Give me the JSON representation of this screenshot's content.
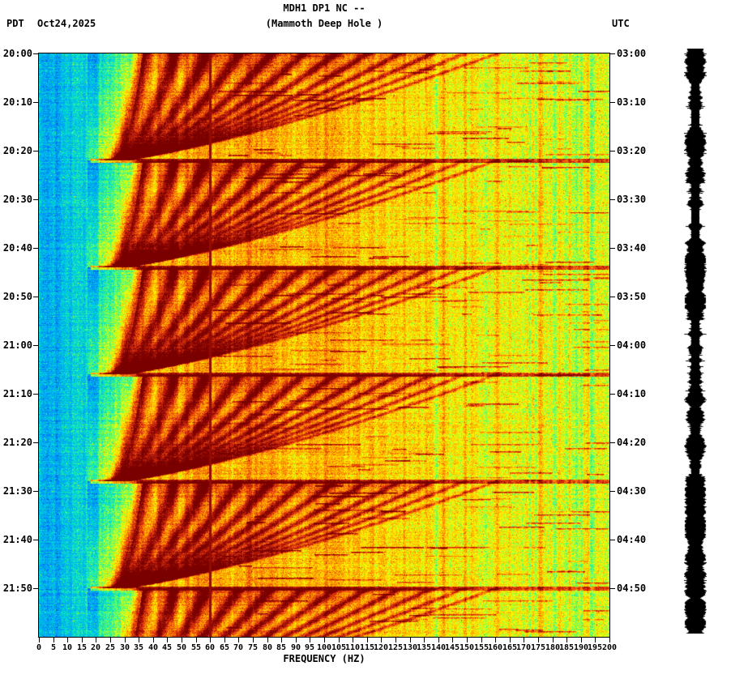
{
  "header": {
    "title_line1": "MDH1 DP1 NC --",
    "title_line2": "(Mammoth Deep Hole )",
    "left_label": "PDT",
    "date": "Oct24,2025",
    "right_label": "UTC"
  },
  "axes": {
    "xlabel": "FREQUENCY (HZ)",
    "left_time_ticks": [
      "20:00",
      "20:10",
      "20:20",
      "20:30",
      "20:40",
      "20:50",
      "21:00",
      "21:10",
      "21:20",
      "21:30",
      "21:40",
      "21:50"
    ],
    "right_time_ticks": [
      "03:00",
      "03:10",
      "03:20",
      "03:30",
      "03:40",
      "03:50",
      "04:00",
      "04:10",
      "04:20",
      "04:30",
      "04:40",
      "04:50"
    ],
    "x_ticks": [
      0,
      5,
      10,
      15,
      20,
      25,
      30,
      35,
      40,
      45,
      50,
      55,
      60,
      65,
      70,
      75,
      80,
      85,
      90,
      95,
      100,
      105,
      110,
      115,
      120,
      125,
      130,
      135,
      140,
      145,
      150,
      155,
      160,
      165,
      170,
      175,
      180,
      185,
      190,
      195,
      200
    ]
  },
  "chart_data": {
    "type": "heatmap",
    "subtype": "seismic-spectrogram",
    "station": "MDH1 DP1 NC",
    "site_name": "Mammoth Deep Hole",
    "date_local": "Oct24,2025",
    "timezone_left": "PDT",
    "timezone_right": "UTC",
    "x_axis": {
      "label": "FREQUENCY (HZ)",
      "min_hz": 0,
      "max_hz": 200,
      "tick_step_hz": 5
    },
    "y_axis": {
      "start_pdt": "20:00",
      "end_pdt": "22:00",
      "start_utc": "03:00",
      "end_utc": "05:00",
      "tick_step_minutes": 10,
      "duration_minutes": 120
    },
    "features": {
      "power_line_hz": 60,
      "low_freq_quiet_band_hz": [
        0,
        18
      ],
      "event_start_minutes": [
        0,
        22,
        44,
        66,
        88,
        110
      ],
      "event_nominal_duration_minutes": 22,
      "harmonic_arc_count": 12,
      "arc_base_hz": 25,
      "arc_max_hz": 160,
      "strong_band_hz": [
        25,
        135
      ]
    },
    "colormap": {
      "name": "jet-like",
      "stops": [
        [
          0,
          "#0000b4"
        ],
        [
          0.18,
          "#0090ff"
        ],
        [
          0.34,
          "#00e0d0"
        ],
        [
          0.46,
          "#60ff60"
        ],
        [
          0.58,
          "#ffff00"
        ],
        [
          0.72,
          "#ff9000"
        ],
        [
          0.84,
          "#e03010"
        ],
        [
          1,
          "#7a0000"
        ]
      ]
    }
  },
  "side_trace": {
    "description": "clipped amplitude waveform bar",
    "color": "#000000"
  }
}
